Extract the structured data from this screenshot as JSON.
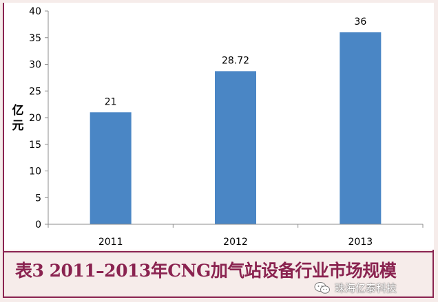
{
  "chart_data": {
    "type": "bar",
    "categories": [
      "2011",
      "2012",
      "2013"
    ],
    "values": [
      21,
      28.72,
      36
    ],
    "data_labels": [
      "21",
      "28.72",
      "36"
    ],
    "ylabel": "亿元",
    "ylim": [
      0,
      40
    ],
    "yticks": [
      0,
      5,
      10,
      15,
      20,
      25,
      30,
      35,
      40
    ],
    "grid": false,
    "bar_color": "#4a86c5"
  },
  "caption": "表3 2011–2013年CNG加气站设备行业市场规模",
  "watermark": {
    "text": "珠海亿泰科技",
    "icon": "wechat-icon"
  },
  "colors": {
    "frame": "#8a2350",
    "background": "#f6ecea"
  }
}
